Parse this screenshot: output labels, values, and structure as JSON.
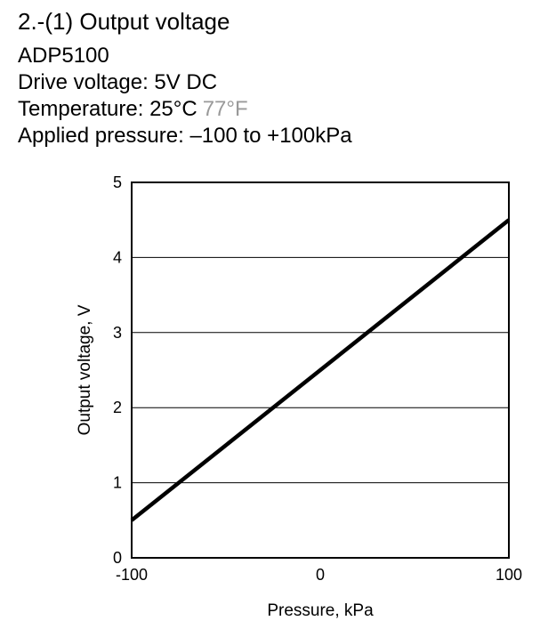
{
  "chart_data": {
    "type": "line",
    "title": "2.-(1) Output voltage",
    "subtitle_lines": [
      [
        "ADP5100"
      ],
      [
        "Drive voltage: 5V DC"
      ],
      [
        "Temperature: 25°C",
        "77°F"
      ],
      [
        "Applied pressure: –100 to +100kPa"
      ]
    ],
    "subtitle_colors": [
      "#000000",
      "#999999"
    ],
    "x_label": "Pressure, kPa",
    "y_label": "Output voltage, V",
    "x": [
      -100,
      100
    ],
    "series": [
      {
        "name": "ADP5100",
        "color": "#000000",
        "values": [
          0.5,
          4.5
        ]
      }
    ],
    "xlim": [
      -100,
      100
    ],
    "xticks": [
      -100,
      0,
      100
    ],
    "ylim": [
      0,
      5
    ],
    "yticks": [
      0,
      1,
      2,
      3,
      4,
      5
    ],
    "grid": true
  }
}
